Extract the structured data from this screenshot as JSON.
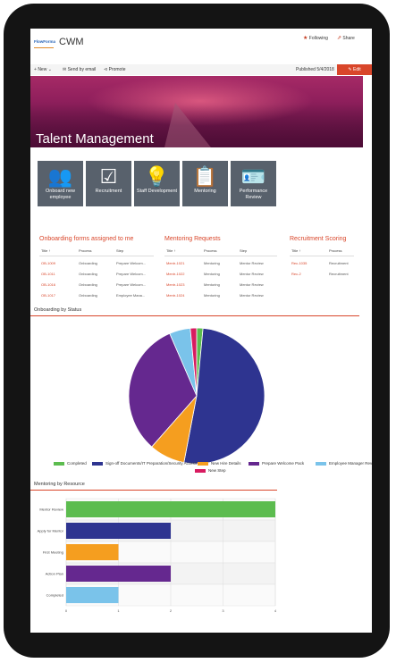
{
  "header": {
    "logo_text": "FlowForma",
    "site_title": "CWM",
    "following_label": "Following",
    "share_label": "Share"
  },
  "commandbar": {
    "new_label": "New",
    "send_email_label": "Send by email",
    "promote_label": "Promote",
    "published_label": "Published 5/4/2018",
    "edit_label": "Edit"
  },
  "hero": {
    "title": "Talent Management"
  },
  "tiles": [
    {
      "label": "Onboard new employee",
      "icon": "handshake-icon"
    },
    {
      "label": "Recruitment",
      "icon": "checkbox-icon"
    },
    {
      "label": "Staff Development",
      "icon": "lightbulb-icon"
    },
    {
      "label": "Mentoring",
      "icon": "clipboard-icon"
    },
    {
      "label": "Performance Review",
      "icon": "id-card-icon"
    }
  ],
  "onboarding": {
    "title": "Onboarding forms assigned to me",
    "columns": [
      "Title ↑",
      "Process",
      "Step"
    ],
    "rows": [
      [
        "OB-1009",
        "Onboarding",
        "Prepare Welcom..."
      ],
      [
        "OB-1011",
        "Onboarding",
        "Prepare Welcom..."
      ],
      [
        "OB-1016",
        "Onboarding",
        "Prepare Welcom..."
      ],
      [
        "OB-1017",
        "Onboarding",
        "Employee Mana..."
      ]
    ]
  },
  "mentoring": {
    "title": "Mentoring Requests",
    "columns": [
      "Title ↑",
      "Process",
      "Step"
    ],
    "rows": [
      [
        "Mentr-1021",
        "Mentoring",
        "Mentor Review"
      ],
      [
        "Mentr-1022",
        "Mentoring",
        "Mentor Review"
      ],
      [
        "Mentr-1023",
        "Mentoring",
        "Mentor Review"
      ],
      [
        "Mentr-1024",
        "Mentoring",
        "Mentor Review"
      ]
    ]
  },
  "recruitment": {
    "title": "Recruitment Scoring",
    "columns": [
      "Title ↑",
      "Process"
    ],
    "rows": [
      [
        "Rec-1035",
        "Recruitment"
      ],
      [
        "Rec-2",
        "Recruitment"
      ]
    ]
  },
  "charts": {
    "onboarding_title": "Onboarding by Status",
    "mentoring_title": "Mentoring by Resource"
  },
  "chart_data": [
    {
      "type": "pie",
      "title": "Onboarding by Status",
      "categories": [
        "Completed",
        "Sign-off Documents/IT Preparation/Security Access",
        "New Hire Details",
        "Prepare Welcome Pack",
        "Employee Manager Review",
        "New Step"
      ],
      "values": [
        1.5,
        51.5,
        8.5,
        32,
        5,
        1.5
      ],
      "colors": [
        "#5cbc4f",
        "#2e3490",
        "#f59e1f",
        "#65288f",
        "#7ac3ea",
        "#d81b60"
      ],
      "legend": "bottom"
    },
    {
      "type": "bar",
      "orientation": "horizontal",
      "title": "Mentoring by Resource",
      "categories": [
        "Mentor Review",
        "Apply for Mentor",
        "First Meeting",
        "Action Plan",
        "Completed"
      ],
      "values": [
        4,
        2,
        1,
        2,
        1
      ],
      "colors": [
        "#5cbc4f",
        "#2e3490",
        "#f59e1f",
        "#65288f",
        "#7ac3ea"
      ],
      "xlim": [
        0,
        4
      ],
      "xticks": [
        "0",
        "1",
        "2",
        "3",
        "4"
      ],
      "grid": true
    }
  ]
}
